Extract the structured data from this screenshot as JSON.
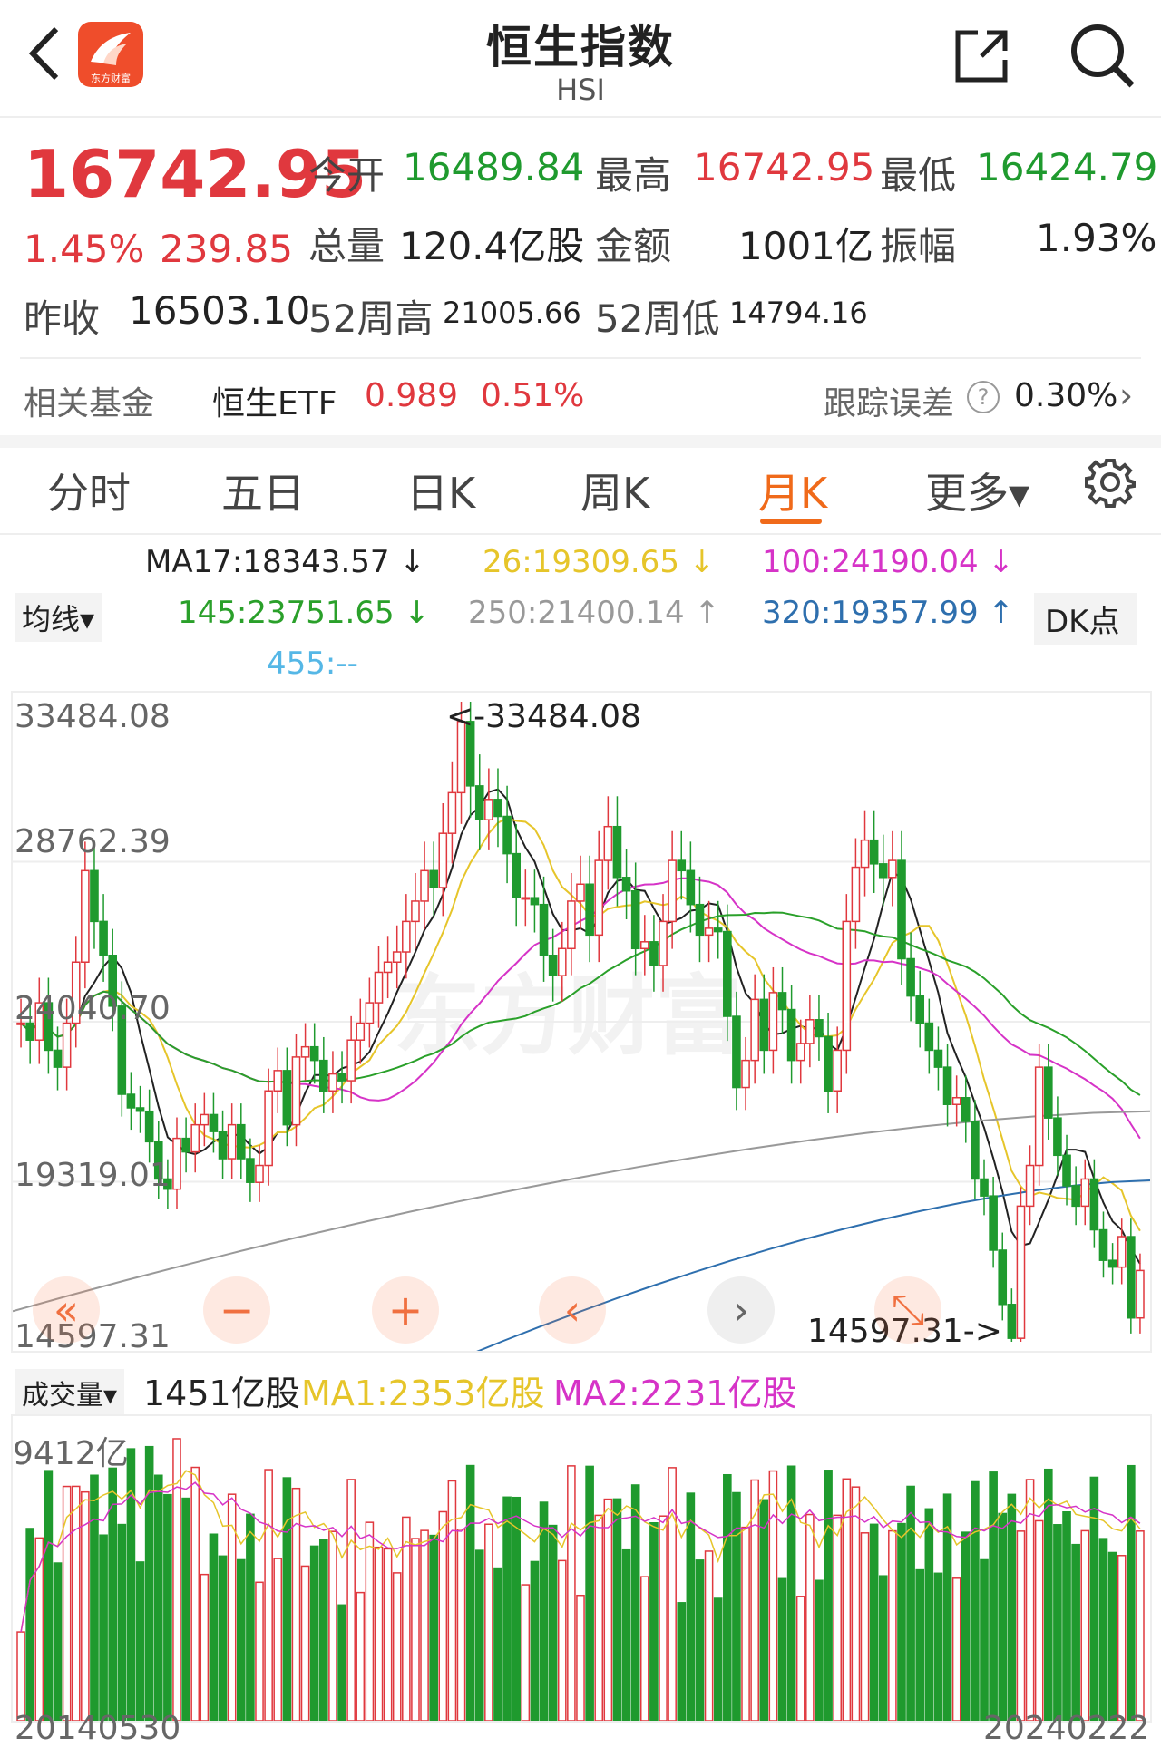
{
  "header": {
    "title": "恒生指数",
    "subtitle": "HSI",
    "logo_text": "东方财富"
  },
  "quote": {
    "price": "16742.95",
    "pct": "1.45%",
    "change": "239.85",
    "open_label": "今开",
    "open": "16489.84",
    "high_label": "最高",
    "high": "16742.95",
    "low_label": "最低",
    "low": "16424.79",
    "vol_label": "总量",
    "vol": "120.4亿股",
    "amt_label": "金额",
    "amt": "1001亿",
    "amp_label": "振幅",
    "amp": "1.93%",
    "prev_label": "昨收",
    "prev": "16503.10",
    "w52h_label": "52周高",
    "w52h": "21005.66",
    "w52l_label": "52周低",
    "w52l": "14794.16"
  },
  "fund": {
    "label": "相关基金",
    "name": "恒生ETF",
    "price": "0.989",
    "pct": "0.51%",
    "track_label": "跟踪误差",
    "track": "0.30%"
  },
  "tabs": [
    "分时",
    "五日",
    "日K",
    "周K",
    "月K",
    "更多▾"
  ],
  "active_tab": "月K",
  "ma": {
    "selector": "均线▾",
    "dk": "DK点",
    "ma17": "MA17:18343.57 ↓",
    "ma26": "26:19309.65 ↓",
    "ma100": "100:24190.04 ↓",
    "ma145": "145:23751.65 ↓",
    "ma250": "250:21400.14 ↑",
    "ma320": "320:19357.99 ↑",
    "ma455": "455:--"
  },
  "price_axis": [
    "33484.08",
    "28762.39",
    "24040.70",
    "19319.01",
    "14597.31"
  ],
  "annotations": {
    "max": "<-33484.08",
    "min": "14597.31->"
  },
  "volume": {
    "selector": "成交量▾",
    "current": "1451亿股",
    "ma1": "MA1:2353亿股",
    "ma2": "MA2:2231亿股",
    "axis_max": "9412亿"
  },
  "dates": {
    "start": "20140530",
    "end": "20240222"
  },
  "controls": {
    "rewind": "«",
    "zoom_out": "−",
    "zoom_in": "+",
    "prev": "‹",
    "next": "›",
    "expand": "⤡"
  },
  "watermark": "东方财富",
  "colors": {
    "up": "#e0383e",
    "down": "#1f9a2e",
    "active": "#f06a1a",
    "ma17": "#222222",
    "ma26": "#e6c52a",
    "ma100": "#d633c7",
    "ma145": "#2aa02a",
    "ma250": "#999999",
    "ma320": "#2e6fae"
  },
  "chart_data": {
    "type": "candlestick",
    "period": "monthly",
    "ylim": [
      14597.31,
      33484.08
    ],
    "max_point": 33484.08,
    "min_point": 14597.31,
    "close_series_approx": [
      24000,
      23500,
      24600,
      23200,
      22700,
      24000,
      25800,
      28500,
      27000,
      26000,
      24500,
      21900,
      21500,
      21400,
      20500,
      19400,
      19100,
      20600,
      20200,
      21000,
      21300,
      20800,
      20000,
      21000,
      20000,
      19300,
      19800,
      22000,
      22600,
      21000,
      23000,
      23300,
      22900,
      22000,
      22500,
      22300,
      23500,
      24000,
      24600,
      25500,
      25800,
      26100,
      27000,
      27600,
      28500,
      28000,
      29600,
      30800,
      32900,
      31000,
      30000,
      30600,
      30100,
      29000,
      27700,
      27700,
      27500,
      26000,
      25400,
      26200,
      27600,
      28100,
      26600,
      28800,
      29800,
      28300,
      27900,
      26200,
      26400,
      25700,
      27000,
      28800,
      28500,
      27500,
      26600,
      26800,
      26700,
      24200,
      22100,
      22900,
      24700,
      23200,
      24900,
      24400,
      22900,
      23400,
      24100,
      23600,
      22000,
      23200,
      27000,
      28600,
      29400,
      28700,
      28300,
      28800,
      25900,
      24800,
      24000,
      23200,
      22700,
      21600,
      21800,
      21100,
      19400,
      18900,
      17300,
      15700,
      14700,
      18600,
      19800,
      22700,
      21200,
      20100,
      19200,
      18600,
      19400,
      17900,
      17000,
      16800,
      17700,
      15300,
      16700
    ]
  }
}
